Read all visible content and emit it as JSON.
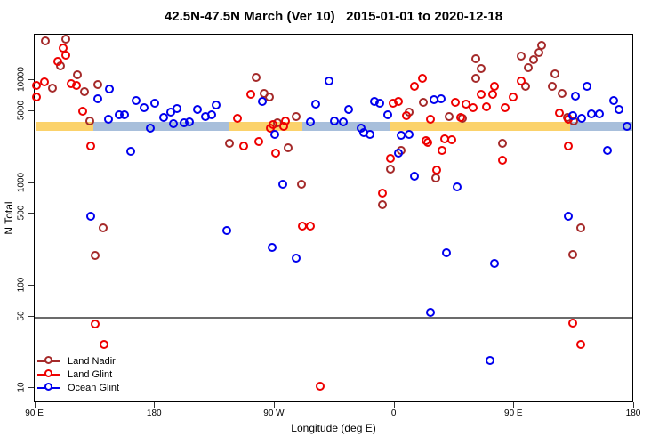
{
  "chart_data": {
    "type": "scatter",
    "title": "42.5N-47.5N March (Ver 10)   2015-01-01 to 2020-12-18",
    "xlabel": "Longitude (deg E)",
    "ylabel": "N Total",
    "x_axis": {
      "note": "longitude axis wraps eastward from 90E through 180, 90W, 0, 90E to 180; stored as continuous 90-540 deg",
      "range": [
        90,
        540
      ],
      "ticks": [
        {
          "v": 90,
          "label": "90 E"
        },
        {
          "v": 180,
          "label": "180"
        },
        {
          "v": 270,
          "label": "90 W"
        },
        {
          "v": 360,
          "label": "0"
        },
        {
          "v": 450,
          "label": "90 E"
        },
        {
          "v": 540,
          "label": "180"
        }
      ]
    },
    "y_axis": {
      "scale": "log",
      "range": [
        8,
        30000
      ],
      "ticks": [
        {
          "v": 10000,
          "label": "10000"
        },
        {
          "v": 5000,
          "label": "5000"
        },
        {
          "v": 1000,
          "label": "1000"
        },
        {
          "v": 500,
          "label": "500"
        },
        {
          "v": 100,
          "label": "100"
        },
        {
          "v": 50,
          "label": "50"
        },
        {
          "v": 10,
          "label": "10"
        }
      ]
    },
    "ref_line": {
      "y": 50,
      "color": "#6b6b6b"
    },
    "bands": {
      "y_top": 3950,
      "y_bottom": 3250,
      "segments": [
        {
          "x1": 90,
          "x2": 134,
          "color": "#FBD26B"
        },
        {
          "x1": 134,
          "x2": 235,
          "color": "#A8BFDB"
        },
        {
          "x1": 235,
          "x2": 291,
          "color": "#FBD26B"
        },
        {
          "x1": 291,
          "x2": 356,
          "color": "#A8BFDB"
        },
        {
          "x1": 356,
          "x2": 492,
          "color": "#FBD26B"
        },
        {
          "x1": 492,
          "x2": 540,
          "color": "#A8BFDB"
        }
      ]
    },
    "series": [
      {
        "name": "Land Nadir",
        "color": "#A52A2A",
        "points": [
          [
            99,
            23300
          ],
          [
            114,
            24200
          ],
          [
            110,
            13300
          ],
          [
            104,
            8100
          ],
          [
            123,
            10900
          ],
          [
            128,
            7500
          ],
          [
            138,
            8800
          ],
          [
            132,
            3900
          ],
          [
            257,
            10300
          ],
          [
            263,
            7200
          ],
          [
            267,
            6600
          ],
          [
            287,
            4270
          ],
          [
            273,
            3710
          ],
          [
            237,
            2340
          ],
          [
            281,
            2120
          ],
          [
            142,
            351
          ],
          [
            136,
            189
          ],
          [
            291,
            933
          ],
          [
            422,
            15600
          ],
          [
            426,
            12500
          ],
          [
            422,
            10100
          ],
          [
            472,
            21000
          ],
          [
            470,
            17900
          ],
          [
            466,
            15300
          ],
          [
            462,
            12800
          ],
          [
            456,
            16600
          ],
          [
            482,
            11100
          ],
          [
            460,
            8400
          ],
          [
            480,
            8400
          ],
          [
            487,
            7200
          ],
          [
            383,
            5860
          ],
          [
            372,
            4710
          ],
          [
            402,
            4270
          ],
          [
            412,
            4100
          ],
          [
            491,
            4180
          ],
          [
            496,
            3860
          ],
          [
            358,
            1310
          ],
          [
            392,
            1070
          ],
          [
            352,
            590
          ],
          [
            442,
            2340
          ],
          [
            501,
            351
          ],
          [
            495,
            193
          ],
          [
            366,
            2000
          ]
        ]
      },
      {
        "name": "Land Glint",
        "color": "#EE0000",
        "points": [
          [
            92,
            8600
          ],
          [
            92,
            6600
          ],
          [
            112,
            19800
          ],
          [
            114,
            16900
          ],
          [
            108,
            14700
          ],
          [
            118,
            8900
          ],
          [
            122,
            8600
          ],
          [
            98,
            9300
          ],
          [
            127,
            4800
          ],
          [
            133,
            2200
          ],
          [
            136,
            41
          ],
          [
            143,
            26
          ],
          [
            305,
            10
          ],
          [
            253,
            7000
          ],
          [
            243,
            4100
          ],
          [
            268,
            3290
          ],
          [
            270,
            3560
          ],
          [
            278,
            3420
          ],
          [
            279,
            3860
          ],
          [
            360,
            5750
          ],
          [
            248,
            2200
          ],
          [
            259,
            2440
          ],
          [
            272,
            1880
          ],
          [
            292,
            366
          ],
          [
            298,
            366
          ],
          [
            376,
            8400
          ],
          [
            382,
            10100
          ],
          [
            456,
            9500
          ],
          [
            436,
            8400
          ],
          [
            435,
            7000
          ],
          [
            426,
            7000
          ],
          [
            430,
            5300
          ],
          [
            444,
            5200
          ],
          [
            450,
            6700
          ],
          [
            420,
            5200
          ],
          [
            407,
            5860
          ],
          [
            415,
            5630
          ],
          [
            411,
            4180
          ],
          [
            364,
            5980
          ],
          [
            370,
            4350
          ],
          [
            485,
            4620
          ],
          [
            492,
            4010
          ],
          [
            388,
            4010
          ],
          [
            399,
            2590
          ],
          [
            385,
            2480
          ],
          [
            358,
            1670
          ],
          [
            386,
            2390
          ],
          [
            397,
            2000
          ],
          [
            442,
            1600
          ],
          [
            352,
            770
          ],
          [
            393,
            1290
          ],
          [
            492,
            2200
          ],
          [
            495,
            42
          ],
          [
            501,
            26
          ],
          [
            404,
            2540
          ]
        ]
      },
      {
        "name": "Ocean Glint",
        "color": "#0000EE",
        "points": [
          [
            147,
            7900
          ],
          [
            138,
            6360
          ],
          [
            146,
            4010
          ],
          [
            154,
            4440
          ],
          [
            158,
            4440
          ],
          [
            167,
            6110
          ],
          [
            173,
            5200
          ],
          [
            181,
            5750
          ],
          [
            188,
            4180
          ],
          [
            193,
            4710
          ],
          [
            195,
            3630
          ],
          [
            178,
            3290
          ],
          [
            163,
            1960
          ],
          [
            133,
            455
          ],
          [
            198,
            5100
          ],
          [
            213,
            5000
          ],
          [
            219,
            4270
          ],
          [
            224,
            4440
          ],
          [
            227,
            5520
          ],
          [
            203,
            3710
          ],
          [
            207,
            3780
          ],
          [
            262,
            5980
          ],
          [
            271,
            2860
          ],
          [
            312,
            9480
          ],
          [
            302,
            5630
          ],
          [
            298,
            3780
          ],
          [
            316,
            3860
          ],
          [
            323,
            3780
          ],
          [
            327,
            5000
          ],
          [
            336,
            3290
          ],
          [
            338,
            2970
          ],
          [
            343,
            2860
          ],
          [
            346,
            5980
          ],
          [
            350,
            5750
          ],
          [
            356,
            4440
          ],
          [
            235,
            330
          ],
          [
            269,
            227
          ],
          [
            287,
            178
          ],
          [
            277,
            933
          ],
          [
            391,
            6220
          ],
          [
            396,
            6360
          ],
          [
            497,
            6750
          ],
          [
            506,
            8400
          ],
          [
            495,
            4350
          ],
          [
            502,
            4100
          ],
          [
            509,
            4520
          ],
          [
            515,
            4520
          ],
          [
            526,
            6110
          ],
          [
            530,
            5000
          ],
          [
            536,
            3420
          ],
          [
            366,
            2800
          ],
          [
            372,
            2860
          ],
          [
            364,
            1880
          ],
          [
            376,
            1120
          ],
          [
            408,
            880
          ],
          [
            400,
            201
          ],
          [
            436,
            158
          ],
          [
            492,
            455
          ],
          [
            388,
            53
          ],
          [
            433,
            18
          ],
          [
            521,
            2000
          ]
        ]
      }
    ],
    "legend": {
      "position": "bottom-left",
      "entries": [
        "Land Nadir",
        "Land Glint",
        "Ocean Glint"
      ]
    }
  }
}
